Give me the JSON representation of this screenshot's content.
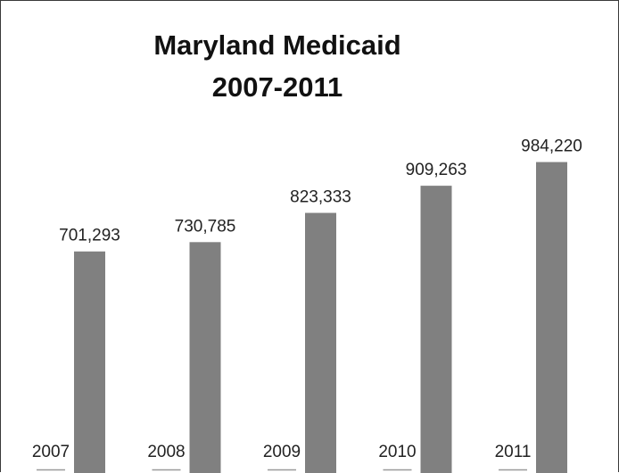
{
  "chart_data": {
    "type": "bar",
    "title": "Maryland Medicaid",
    "subtitle": "2007-2011",
    "categories": [
      "2007",
      "2008",
      "2009",
      "2010",
      "2011"
    ],
    "values": [
      701293,
      730785,
      823333,
      909263,
      984220
    ],
    "value_labels": [
      "701,293",
      "730,785",
      "823,333",
      "909,263",
      "984,220"
    ],
    "xlabel": "",
    "ylabel": "",
    "ylim": [
      0,
      1000000
    ],
    "grid": false,
    "legend": "none",
    "bar_color": "#808080"
  }
}
